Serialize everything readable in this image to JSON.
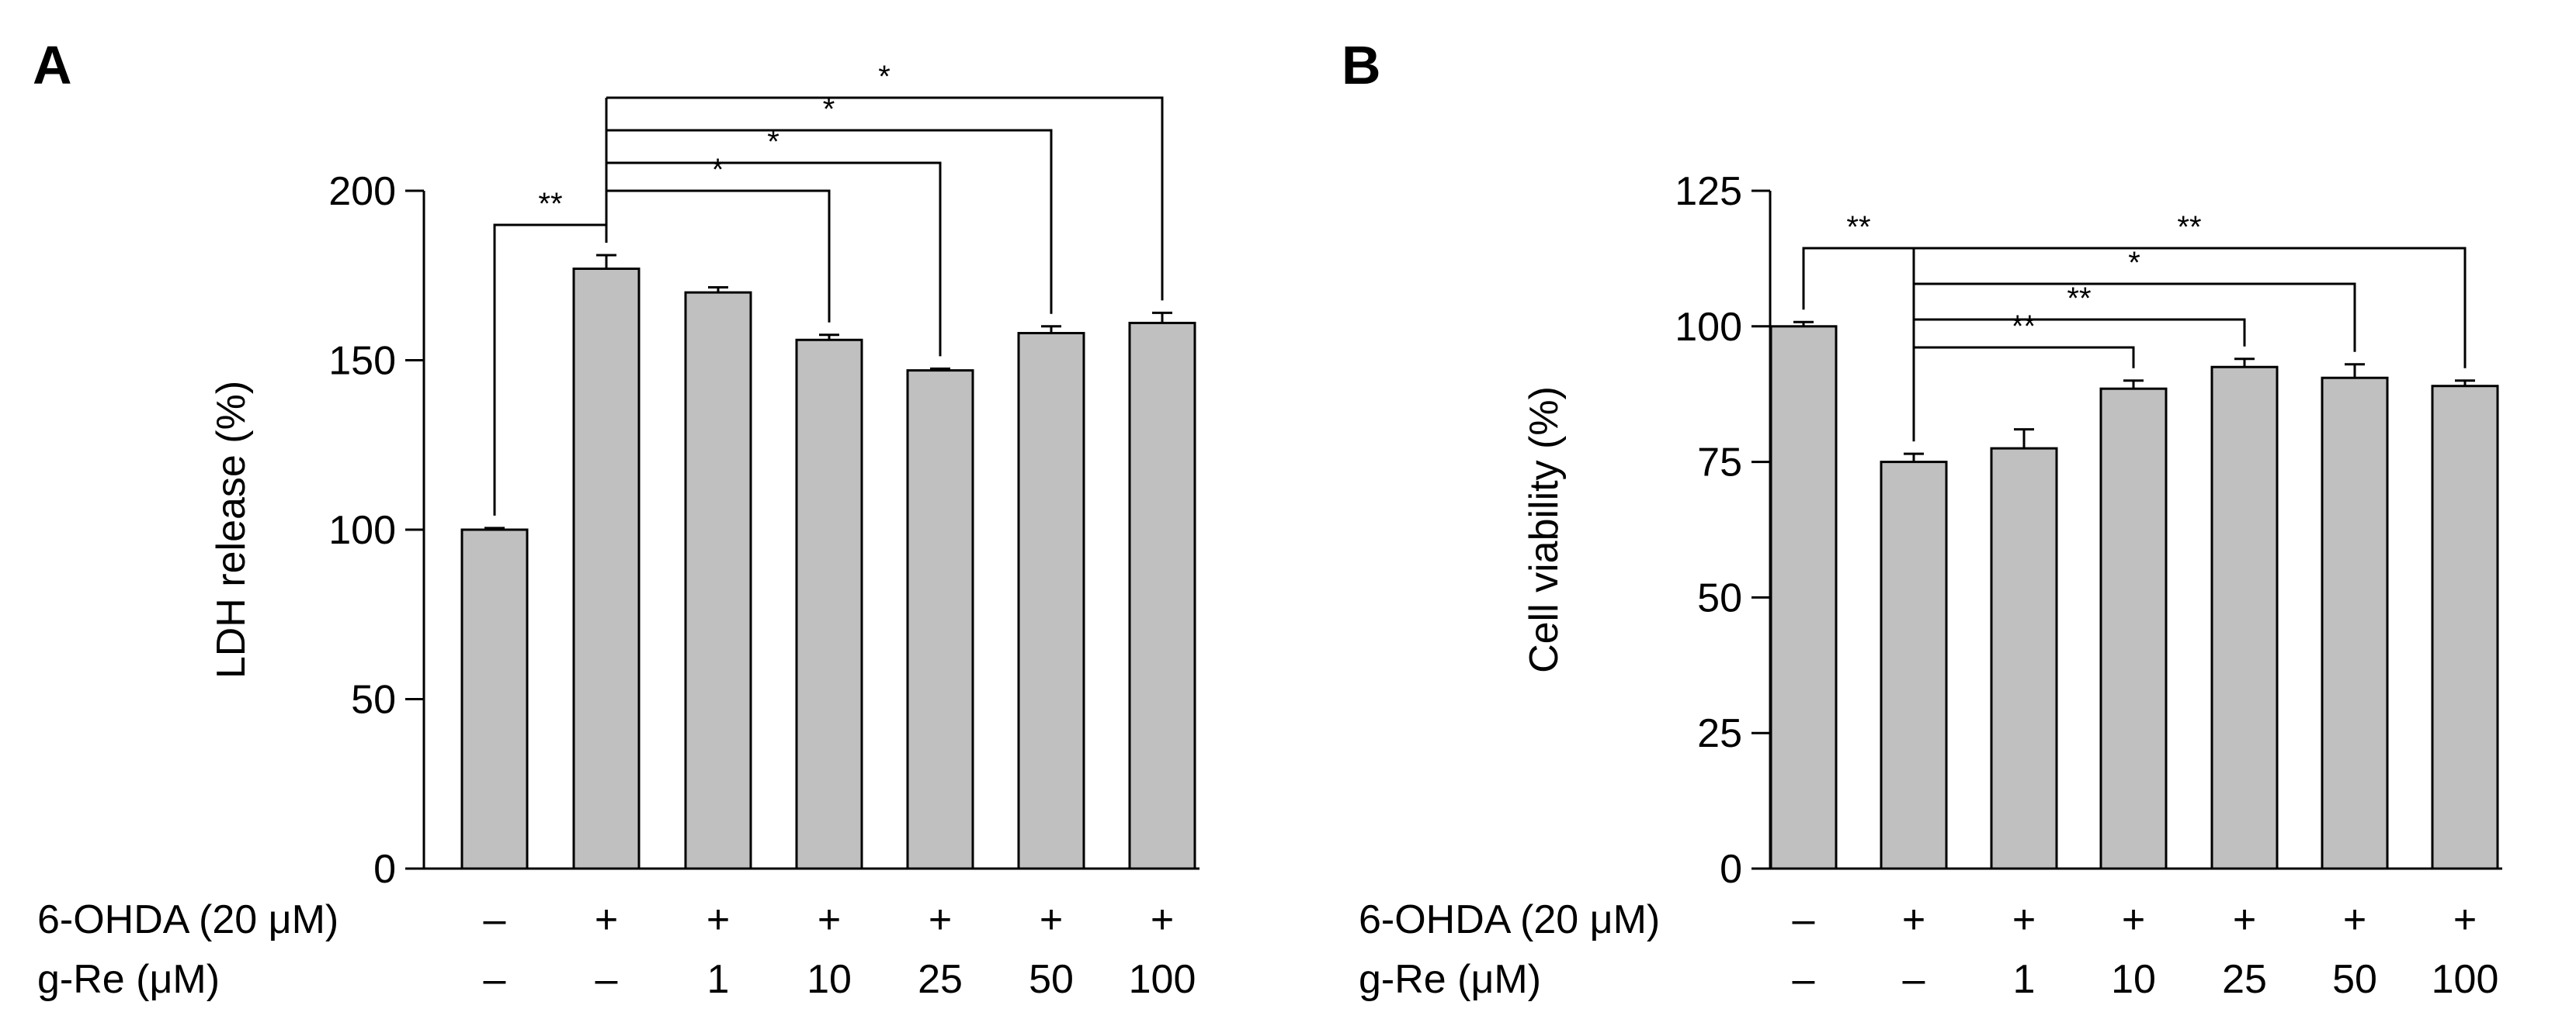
{
  "colors": {
    "bar_fill": "#c0c0c0",
    "stroke": "#000000",
    "background": "#ffffff"
  },
  "chart_data": [
    {
      "panel": "A",
      "type": "bar",
      "ylabel": "LDH release (%)",
      "ylim": [
        0,
        200
      ],
      "yticks": [
        0,
        50,
        100,
        150,
        200
      ],
      "values": [
        100,
        177,
        170,
        156,
        147,
        158,
        161
      ],
      "errors": [
        0.5,
        4,
        1.5,
        1.5,
        0.5,
        2,
        3
      ],
      "conditions": [
        {
          "label": "6-OHDA (20 μM)",
          "values": [
            "–",
            "+",
            "+",
            "+",
            "+",
            "+",
            "+"
          ]
        },
        {
          "label": "g-Re (μM)",
          "values": [
            "–",
            "–",
            "1",
            "10",
            "25",
            "50",
            "100"
          ]
        }
      ],
      "comparisons": [
        {
          "from": 0,
          "to": 1,
          "label": "**"
        },
        {
          "from": 1,
          "to": 3,
          "label": "*"
        },
        {
          "from": 1,
          "to": 4,
          "label": "*"
        },
        {
          "from": 1,
          "to": 5,
          "label": "*"
        },
        {
          "from": 1,
          "to": 6,
          "label": "*"
        }
      ]
    },
    {
      "panel": "B",
      "type": "bar",
      "ylabel": "Cell viability (%)",
      "ylim": [
        0,
        125
      ],
      "yticks": [
        0,
        25,
        50,
        75,
        100,
        125
      ],
      "values": [
        100,
        75,
        77.5,
        88.5,
        92.5,
        90.5,
        89
      ],
      "errors": [
        0.8,
        1.5,
        3.5,
        1.5,
        1.5,
        2.5,
        1
      ],
      "conditions": [
        {
          "label": "6-OHDA (20 μM)",
          "values": [
            "–",
            "+",
            "+",
            "+",
            "+",
            "+",
            "+"
          ]
        },
        {
          "label": "g-Re (μM)",
          "values": [
            "–",
            "–",
            "1",
            "10",
            "25",
            "50",
            "100"
          ]
        }
      ],
      "comparisons": [
        {
          "from": 0,
          "to": 1,
          "label": "**"
        },
        {
          "from": 1,
          "to": 3,
          "label": "**"
        },
        {
          "from": 1,
          "to": 4,
          "label": "**"
        },
        {
          "from": 1,
          "to": 5,
          "label": "*"
        },
        {
          "from": 1,
          "to": 6,
          "label": "**"
        }
      ]
    }
  ]
}
